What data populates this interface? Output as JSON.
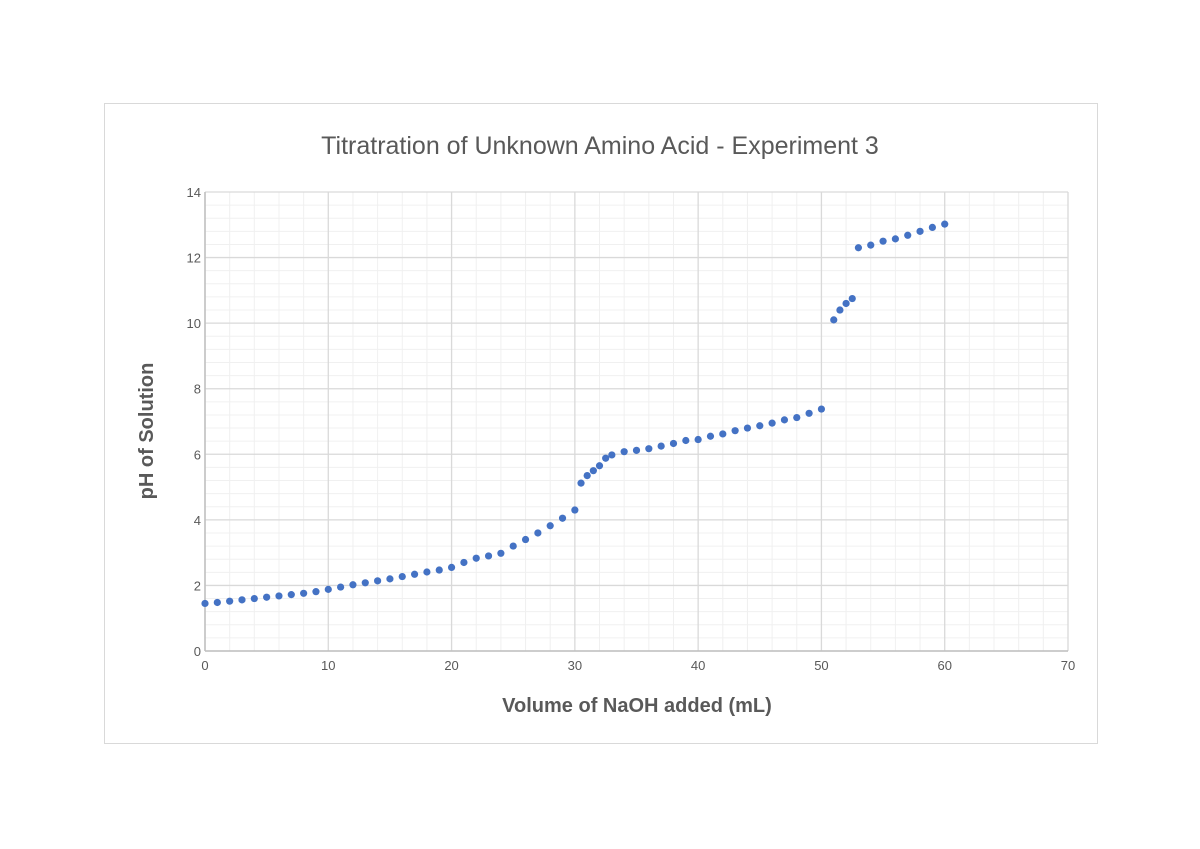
{
  "chart_data": {
    "type": "scatter",
    "title": "Titratration of Unknown Amino Acid - Experiment 3",
    "xlabel": "Volume of NaOH added (mL)",
    "ylabel": "pH of Solution",
    "xlim": [
      0,
      70
    ],
    "ylim": [
      0,
      14
    ],
    "xticks": [
      "0",
      "10",
      "20",
      "30",
      "40",
      "50",
      "60",
      "70"
    ],
    "yticks": [
      "0",
      "2",
      "4",
      "6",
      "8",
      "10",
      "12",
      "14"
    ],
    "grid": true,
    "legend": "none",
    "marker_color": "#4472c4",
    "series": [
      {
        "points": [
          [
            0,
            1.45
          ],
          [
            1,
            1.48
          ],
          [
            2,
            1.52
          ],
          [
            3,
            1.56
          ],
          [
            4,
            1.6
          ],
          [
            5,
            1.64
          ],
          [
            6,
            1.68
          ],
          [
            7,
            1.72
          ],
          [
            8,
            1.76
          ],
          [
            9,
            1.81
          ],
          [
            10,
            1.88
          ],
          [
            11,
            1.95
          ],
          [
            12,
            2.02
          ],
          [
            13,
            2.08
          ],
          [
            14,
            2.14
          ],
          [
            15,
            2.2
          ],
          [
            16,
            2.27
          ],
          [
            17,
            2.34
          ],
          [
            18,
            2.41
          ],
          [
            19,
            2.47
          ],
          [
            20,
            2.55
          ],
          [
            21,
            2.7
          ],
          [
            22,
            2.83
          ],
          [
            23,
            2.9
          ],
          [
            24,
            2.98
          ],
          [
            25,
            3.2
          ],
          [
            26,
            3.4
          ],
          [
            27,
            3.6
          ],
          [
            28,
            3.82
          ],
          [
            29,
            4.05
          ],
          [
            30,
            4.3
          ],
          [
            30.5,
            5.12
          ],
          [
            31,
            5.35
          ],
          [
            31.5,
            5.5
          ],
          [
            32,
            5.65
          ],
          [
            32.5,
            5.88
          ],
          [
            33,
            5.98
          ],
          [
            34,
            6.08
          ],
          [
            35,
            6.12
          ],
          [
            36,
            6.17
          ],
          [
            37,
            6.25
          ],
          [
            38,
            6.33
          ],
          [
            39,
            6.42
          ],
          [
            40,
            6.45
          ],
          [
            41,
            6.55
          ],
          [
            42,
            6.62
          ],
          [
            43,
            6.72
          ],
          [
            44,
            6.8
          ],
          [
            45,
            6.87
          ],
          [
            46,
            6.95
          ],
          [
            47,
            7.05
          ],
          [
            48,
            7.12
          ],
          [
            49,
            7.25
          ],
          [
            50,
            7.38
          ],
          [
            51,
            10.1
          ],
          [
            51.5,
            10.4
          ],
          [
            52,
            10.6
          ],
          [
            52.5,
            10.75
          ],
          [
            53,
            12.3
          ],
          [
            54,
            12.38
          ],
          [
            55,
            12.5
          ],
          [
            56,
            12.57
          ],
          [
            57,
            12.68
          ],
          [
            58,
            12.8
          ],
          [
            59,
            12.92
          ],
          [
            60,
            13.02
          ]
        ]
      }
    ]
  }
}
